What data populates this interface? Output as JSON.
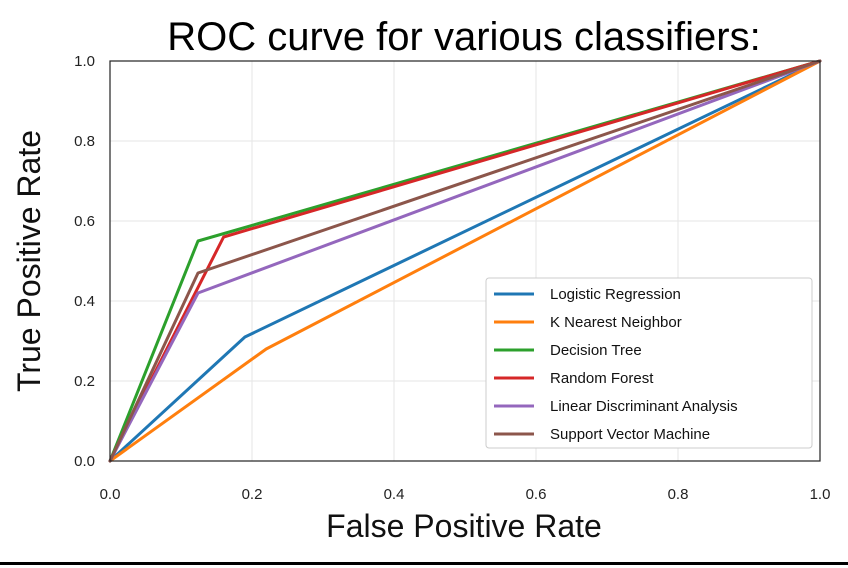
{
  "chart_data": {
    "type": "line",
    "title": "ROC curve for various classifiers:",
    "xlabel": "False Positive Rate",
    "ylabel": "True Positive Rate",
    "xlim": [
      0.0,
      1.0
    ],
    "ylim": [
      0.0,
      1.0
    ],
    "xticks": [
      "0.0",
      "0.2",
      "0.4",
      "0.6",
      "0.8",
      "1.0"
    ],
    "yticks": [
      "0.0",
      "0.2",
      "0.4",
      "0.6",
      "0.8",
      "1.0"
    ],
    "grid": true,
    "legend_position": "lower-right",
    "series": [
      {
        "name": "Logistic Regression",
        "color": "#1f77b4",
        "x": [
          0.0,
          0.19,
          1.0
        ],
        "y": [
          0.0,
          0.31,
          1.0
        ]
      },
      {
        "name": "K Nearest Neighbor",
        "color": "#ff7f0e",
        "x": [
          0.0,
          0.22,
          1.0
        ],
        "y": [
          0.0,
          0.28,
          1.0
        ]
      },
      {
        "name": "Decision Tree",
        "color": "#2ca02c",
        "x": [
          0.0,
          0.124,
          1.0
        ],
        "y": [
          0.0,
          0.55,
          1.0
        ]
      },
      {
        "name": "Random Forest",
        "color": "#d62728",
        "x": [
          0.0,
          0.16,
          1.0
        ],
        "y": [
          0.0,
          0.56,
          1.0
        ]
      },
      {
        "name": "Linear Discriminant Analysis",
        "color": "#9467bd",
        "x": [
          0.0,
          0.124,
          1.0
        ],
        "y": [
          0.0,
          0.42,
          1.0
        ]
      },
      {
        "name": "Support Vector Machine",
        "color": "#8c564b",
        "x": [
          0.0,
          0.124,
          1.0
        ],
        "y": [
          0.0,
          0.47,
          1.0
        ]
      }
    ]
  }
}
